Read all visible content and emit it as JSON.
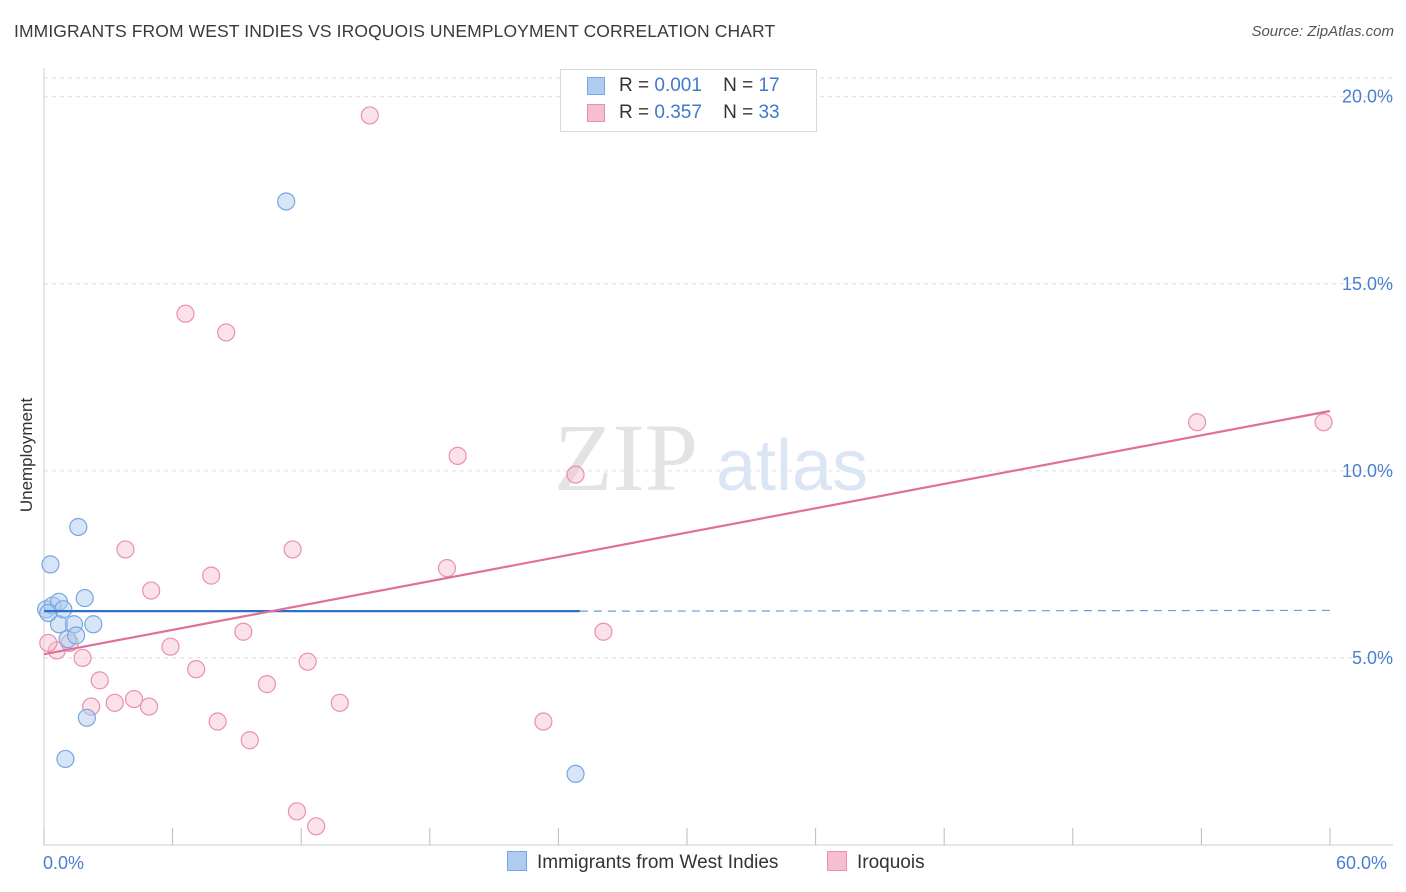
{
  "title": "IMMIGRANTS FROM WEST INDIES VS IROQUOIS UNEMPLOYMENT CORRELATION CHART",
  "source": "Source: ZipAtlas.com",
  "watermark": {
    "zip": "ZIP",
    "atlas": "atlas"
  },
  "legend": {
    "series1": {
      "r_label": "R =",
      "r_value": "0.001",
      "n_label": "N =",
      "n_value": "17"
    },
    "series2": {
      "r_label": "R =",
      "r_value": "0.357",
      "n_label": "N =",
      "n_value": "33"
    }
  },
  "colors": {
    "blue_fill": "#aecbf0",
    "blue_stroke": "#7aa6e0",
    "blue_line": "#2f6fcc",
    "pink_fill": "#f6bfd0",
    "pink_stroke": "#eb8fae",
    "pink_line": "#e0709a",
    "axis_text": "#4a7fcf",
    "grid": "#dddddd"
  },
  "chart_data": {
    "type": "scatter",
    "title": "IMMIGRANTS FROM WEST INDIES VS IROQUOIS UNEMPLOYMENT CORRELATION CHART",
    "xlabel": "",
    "ylabel": "Unemployment",
    "xlim": [
      0,
      60
    ],
    "ylim": [
      0,
      20.5
    ],
    "x_tick_labels": [
      "0.0%",
      "60.0%"
    ],
    "y_ticks": [
      5,
      10,
      15,
      20
    ],
    "y_tick_labels": [
      "5.0%",
      "10.0%",
      "15.0%",
      "20.0%"
    ],
    "legend_position": "top-center",
    "series": [
      {
        "name": "Immigrants from West Indies",
        "color": "blue",
        "points": [
          {
            "x": 0.1,
            "y": 6.3
          },
          {
            "x": 0.3,
            "y": 7.5
          },
          {
            "x": 0.4,
            "y": 6.4
          },
          {
            "x": 0.7,
            "y": 6.5
          },
          {
            "x": 0.7,
            "y": 5.9
          },
          {
            "x": 0.9,
            "y": 6.3
          },
          {
            "x": 1.0,
            "y": 2.3
          },
          {
            "x": 1.1,
            "y": 5.5
          },
          {
            "x": 1.4,
            "y": 5.9
          },
          {
            "x": 1.5,
            "y": 5.6
          },
          {
            "x": 1.6,
            "y": 8.5
          },
          {
            "x": 1.9,
            "y": 6.6
          },
          {
            "x": 2.0,
            "y": 3.4
          },
          {
            "x": 2.3,
            "y": 5.9
          },
          {
            "x": 11.3,
            "y": 17.2
          },
          {
            "x": 24.8,
            "y": 1.9
          },
          {
            "x": 0.2,
            "y": 6.2
          }
        ],
        "trend": {
          "x0": 0,
          "y0": 6.25,
          "x1": 25.0,
          "y1": 6.25,
          "dashed_to_x": 60,
          "dashed_to_y": 6.27
        }
      },
      {
        "name": "Iroquois",
        "color": "pink",
        "points": [
          {
            "x": 0.6,
            "y": 5.2
          },
          {
            "x": 1.2,
            "y": 5.4
          },
          {
            "x": 1.8,
            "y": 5.0
          },
          {
            "x": 2.2,
            "y": 3.7
          },
          {
            "x": 2.6,
            "y": 4.4
          },
          {
            "x": 3.3,
            "y": 3.8
          },
          {
            "x": 3.8,
            "y": 7.9
          },
          {
            "x": 4.2,
            "y": 3.9
          },
          {
            "x": 4.9,
            "y": 3.7
          },
          {
            "x": 5.0,
            "y": 6.8
          },
          {
            "x": 5.9,
            "y": 5.3
          },
          {
            "x": 6.6,
            "y": 14.2
          },
          {
            "x": 7.1,
            "y": 4.7
          },
          {
            "x": 7.8,
            "y": 7.2
          },
          {
            "x": 8.1,
            "y": 3.3
          },
          {
            "x": 8.5,
            "y": 13.7
          },
          {
            "x": 9.3,
            "y": 5.7
          },
          {
            "x": 9.6,
            "y": 2.8
          },
          {
            "x": 10.4,
            "y": 4.3
          },
          {
            "x": 11.6,
            "y": 7.9
          },
          {
            "x": 11.8,
            "y": 0.9
          },
          {
            "x": 12.3,
            "y": 4.9
          },
          {
            "x": 12.7,
            "y": 0.5
          },
          {
            "x": 13.8,
            "y": 3.8
          },
          {
            "x": 15.2,
            "y": 19.5
          },
          {
            "x": 18.8,
            "y": 7.4
          },
          {
            "x": 19.3,
            "y": 10.4
          },
          {
            "x": 23.3,
            "y": 3.3
          },
          {
            "x": 24.8,
            "y": 9.9
          },
          {
            "x": 26.1,
            "y": 5.7
          },
          {
            "x": 53.8,
            "y": 11.3
          },
          {
            "x": 59.7,
            "y": 11.3
          },
          {
            "x": 0.2,
            "y": 5.4
          }
        ],
        "trend": {
          "x0": 0,
          "y0": 5.1,
          "x1": 60,
          "y1": 11.6
        }
      }
    ]
  },
  "bottom_legend": {
    "series1_label": "Immigrants from West Indies",
    "series2_label": "Iroquois"
  }
}
